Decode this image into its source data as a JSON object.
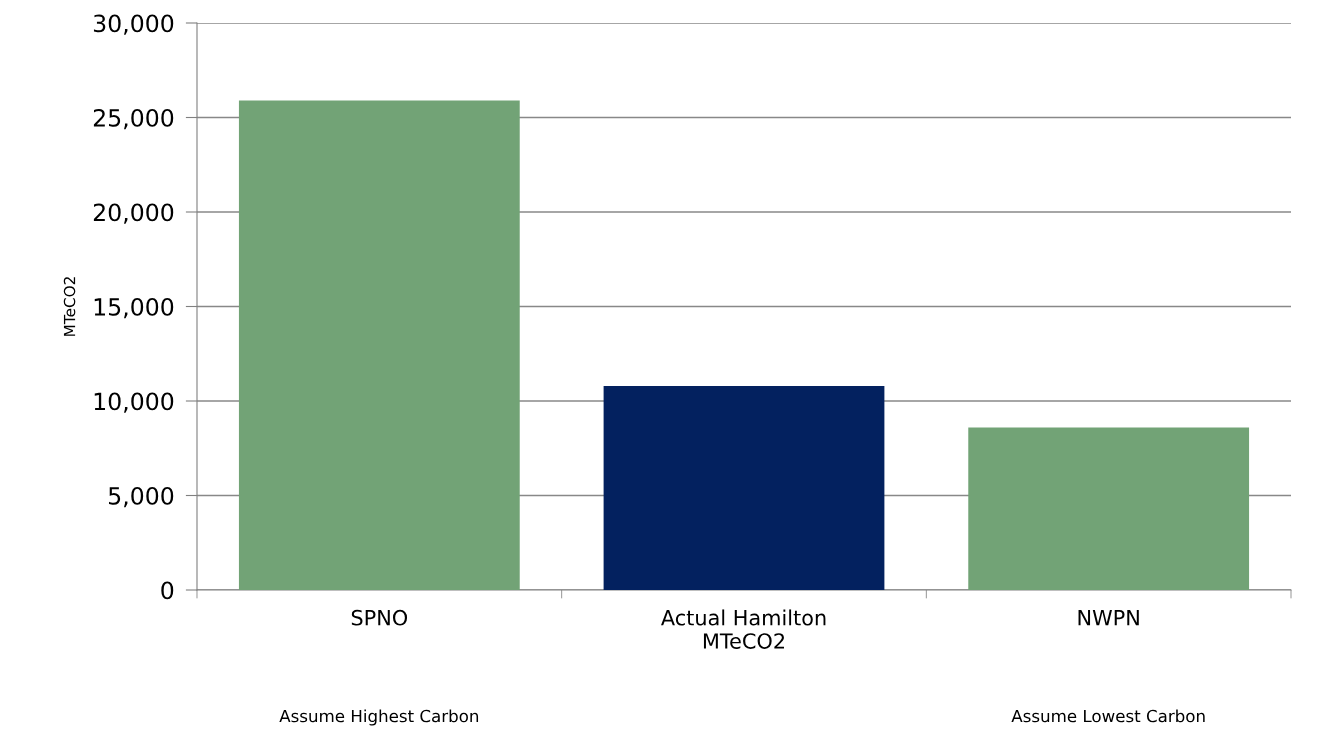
{
  "chart_data": {
    "type": "bar",
    "ylabel": "MTeCO2",
    "categories": [
      "SPNO",
      "Actual Hamilton\nMTeCO2",
      "NWPN"
    ],
    "values": [
      25900,
      10800,
      8600
    ],
    "colors": [
      "#72a376",
      "#03215f",
      "#72a376"
    ],
    "ylim": [
      0,
      30000
    ],
    "yticks": [
      {
        "value": 0,
        "label": "0"
      },
      {
        "value": 5000,
        "label": "5,000"
      },
      {
        "value": 10000,
        "label": "10,000"
      },
      {
        "value": 15000,
        "label": "15,000"
      },
      {
        "value": 20000,
        "label": "20,000"
      },
      {
        "value": 25000,
        "label": "25,000"
      },
      {
        "value": 30000,
        "label": "30,000"
      }
    ],
    "grid": "y",
    "annotations": [
      "Assume Highest Carbon",
      "Assume Lowest Carbon"
    ]
  }
}
